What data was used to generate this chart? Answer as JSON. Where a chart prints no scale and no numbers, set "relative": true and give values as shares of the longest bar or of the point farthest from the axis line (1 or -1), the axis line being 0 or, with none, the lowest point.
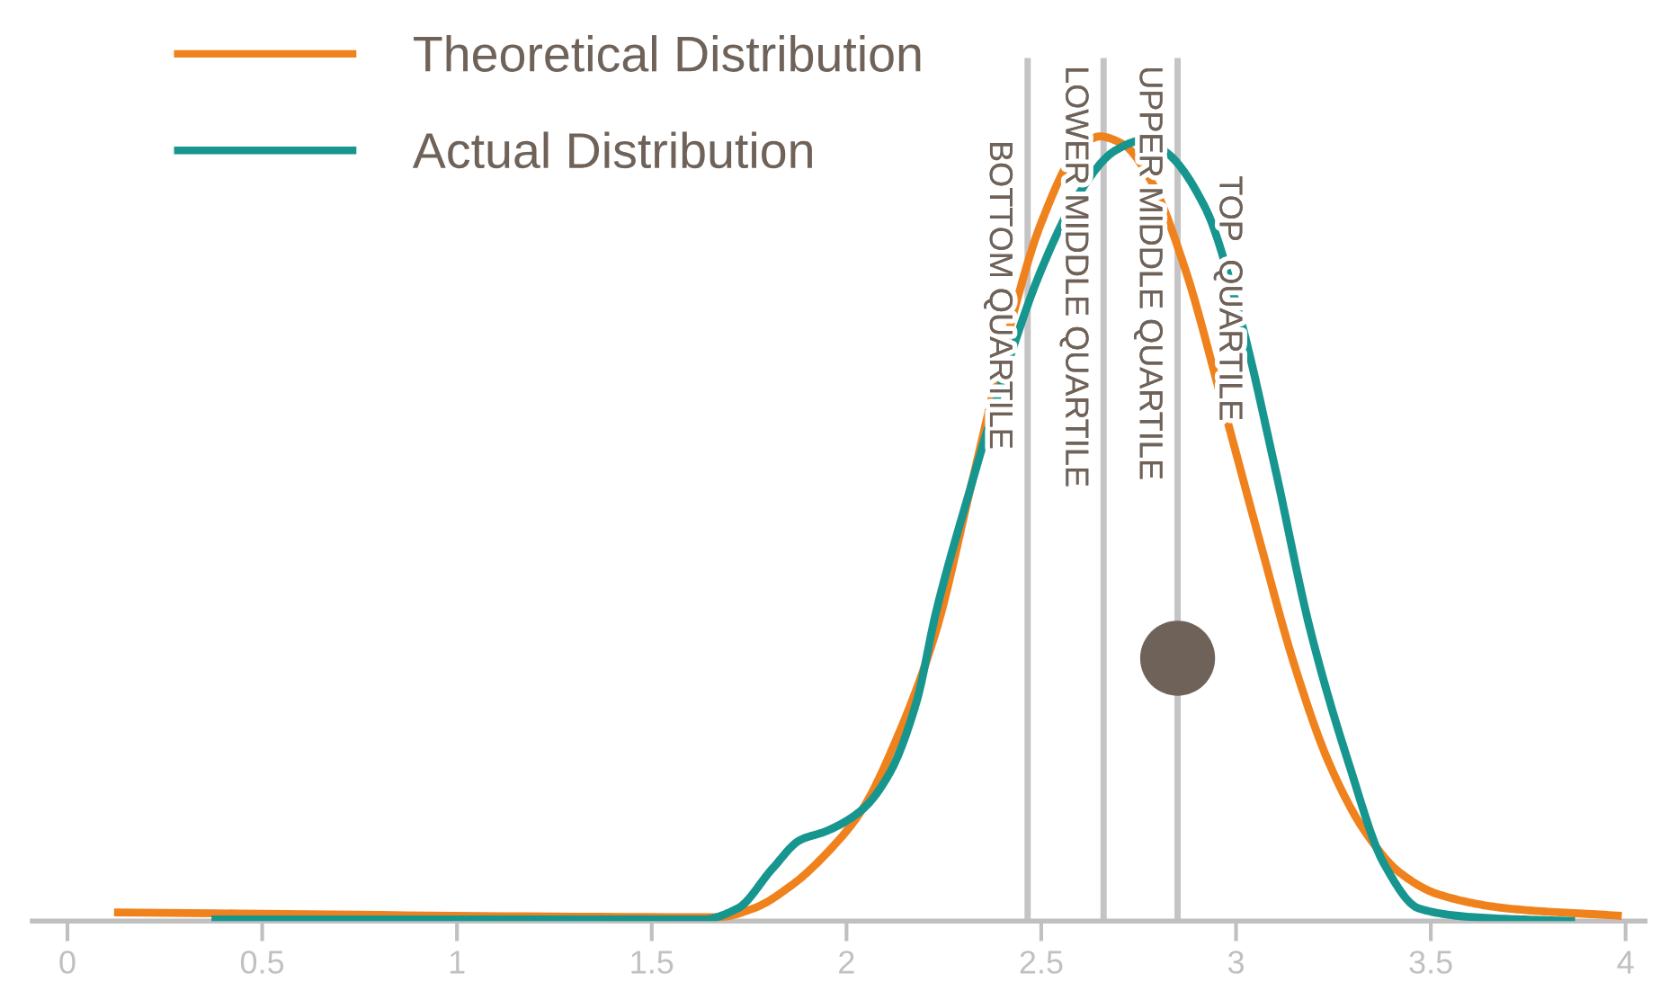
{
  "chart_data": {
    "type": "line",
    "relative": true,
    "legend": "top left",
    "grid": false,
    "line_style": "solid",
    "xlim": [
      -0.09,
      4.05
    ],
    "xticks": [
      0,
      0.5,
      1,
      1.5,
      2,
      2.5,
      3,
      3.5,
      4
    ],
    "series": [
      {
        "name": "Theoretical Distribution",
        "color": "#f0821e",
        "x": [
          0.13,
          1.67,
          1.76,
          1.86,
          1.95,
          2.04,
          2.13,
          2.23,
          2.32,
          2.41,
          2.5,
          2.59,
          2.65,
          2.71,
          2.78,
          2.87,
          2.96,
          3.06,
          3.15,
          3.24,
          3.33,
          3.42,
          3.52,
          3.7,
          3.98
        ],
        "values": [
          0.011,
          0.005,
          0.016,
          0.046,
          0.087,
          0.142,
          0.234,
          0.37,
          0.555,
          0.74,
          0.89,
          0.98,
          1,
          0.99,
          0.945,
          0.83,
          0.67,
          0.486,
          0.326,
          0.2,
          0.115,
          0.062,
          0.034,
          0.016,
          0.007
        ]
      },
      {
        "name": "Actual Distribution",
        "color": "#17958f",
        "x": [
          0.38,
          1.63,
          1.72,
          1.81,
          1.88,
          1.95,
          2.04,
          2.11,
          2.18,
          2.23,
          2.32,
          2.41,
          2.5,
          2.59,
          2.69,
          2.76,
          2.82,
          2.92,
          3.01,
          3.1,
          3.19,
          3.29,
          3.38,
          3.47,
          3.61,
          3.86
        ],
        "values": [
          0.002,
          0.002,
          0.016,
          0.067,
          0.103,
          0.115,
          0.142,
          0.188,
          0.28,
          0.394,
          0.555,
          0.704,
          0.83,
          0.922,
          0.982,
          0.995,
          0.98,
          0.91,
          0.77,
          0.578,
          0.372,
          0.2,
          0.073,
          0.016,
          0.005,
          0
        ]
      },
      {
        "type": "scatter",
        "color": "#6f6259",
        "x": [
          2.85
        ],
        "values": [
          0.335
        ]
      }
    ],
    "ref_lines": [
      {
        "axis": "x",
        "value": 2.465,
        "color": "#c4c4c4"
      },
      {
        "axis": "x",
        "value": 2.66,
        "color": "#c4c4c4"
      },
      {
        "axis": "x",
        "value": 2.85,
        "color": "#c4c4c4"
      }
    ],
    "annotations": [
      "BOTTOM QUARTILE",
      "LOWER MIDDLE QUARTILE",
      "UPPER MIDDLE QUARTILE",
      "TOP  QUARTILE"
    ]
  }
}
